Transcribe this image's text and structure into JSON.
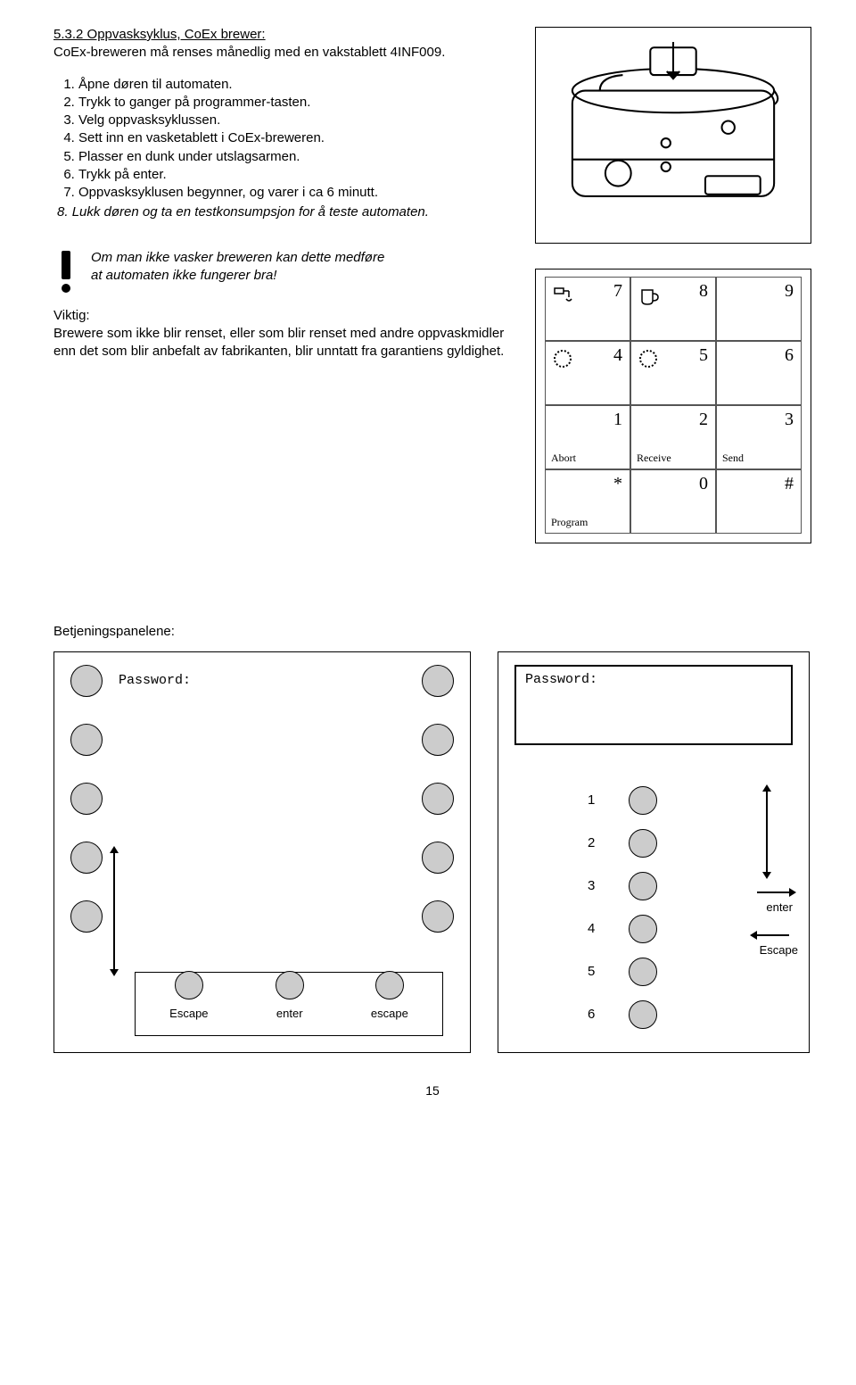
{
  "section": {
    "title": "5.3.2 Oppvasksyklus, CoEx brewer:",
    "intro": "CoEx-breweren må renses månedlig med en vakstablett 4INF009.",
    "steps": [
      "Åpne døren til automaten.",
      "Trykk to ganger på programmer-tasten.",
      "Velg oppvasksyklussen.",
      "Sett inn en vasketablett i CoEx-breweren.",
      "Plasser en dunk under utslagsarmen.",
      "Trykk på enter.",
      "Oppvasksyklusen begynner, og varer i ca 6 minutt."
    ],
    "step8": "Lukk døren og ta en testkonsumpsjon for å teste automaten.",
    "step8_num": "8."
  },
  "warning": {
    "line1": "Om man ikke vasker breweren kan dette medføre",
    "line2": "at automaten ikke fungerer bra!"
  },
  "viktig": {
    "label": "Viktig:",
    "text": "Brewere som ikke blir renset, eller som blir renset med andre oppvaskmidler enn det som blir anbefalt av fabrikanten, blir unntatt fra garantiens gyldighet."
  },
  "keypad": {
    "cells": [
      {
        "num": "7",
        "icon": "tap"
      },
      {
        "num": "8",
        "icon": "cup"
      },
      {
        "num": "9"
      },
      {
        "num": "4",
        "icon": "wreath"
      },
      {
        "num": "5",
        "icon": "wreath"
      },
      {
        "num": "6"
      },
      {
        "num": "1",
        "lbl": "Abort"
      },
      {
        "num": "2",
        "lbl": "Receive"
      },
      {
        "num": "3",
        "lbl": "Send"
      },
      {
        "num": "*",
        "lbl": "Program"
      },
      {
        "num": "0"
      },
      {
        "num": "#"
      }
    ]
  },
  "panels": {
    "heading": "Betjeningspanelene:",
    "password": "Password:",
    "bottom_labels": [
      "Escape",
      "enter",
      "escape"
    ],
    "pb_nums": [
      "1",
      "2",
      "3",
      "4",
      "5",
      "6"
    ],
    "enter": "enter",
    "escape": "Escape"
  },
  "page": "15"
}
